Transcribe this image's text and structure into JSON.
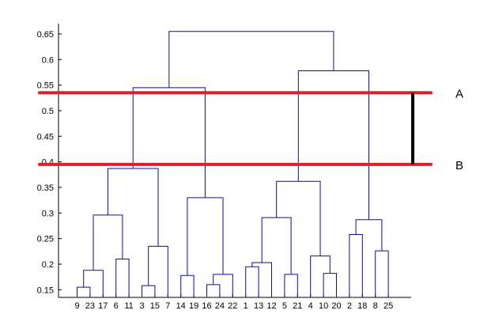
{
  "chart_data": {
    "type": "dendrogram",
    "ylim": [
      0.135,
      0.67
    ],
    "y_ticks": [
      0.15,
      0.2,
      0.25,
      0.3,
      0.35,
      0.4,
      0.45,
      0.5,
      0.55,
      0.6,
      0.65
    ],
    "y_tick_labels": [
      "0.15",
      "0.2",
      "0.25",
      "0.3",
      "0.35",
      "0.4",
      "0.45",
      "0.5",
      "0.55",
      "0.6",
      "0.65"
    ],
    "leaf_order": [
      "9",
      "23",
      "17",
      "6",
      "11",
      "3",
      "15",
      "7",
      "14",
      "19",
      "16",
      "24",
      "22",
      "1",
      "13",
      "12",
      "5",
      "21",
      "4",
      "10",
      "20",
      "2",
      "18",
      "8",
      "25"
    ],
    "merges": [
      {
        "left": "9",
        "right": "23",
        "height": 0.155
      },
      {
        "left": "9-23",
        "right": "17",
        "height": 0.188
      },
      {
        "left": "6",
        "right": "11",
        "height": 0.21
      },
      {
        "left": "9-23-17",
        "right": "6-11",
        "height": 0.296
      },
      {
        "left": "3",
        "right": "15",
        "height": 0.158
      },
      {
        "left": "3-15",
        "right": "7",
        "height": 0.235
      },
      {
        "left": "9-23-17-6-11",
        "right": "3-15-7",
        "height": 0.387
      },
      {
        "left": "16",
        "right": "24",
        "height": 0.16
      },
      {
        "left": "16-24",
        "right": "22",
        "height": 0.18
      },
      {
        "left": "14",
        "right": "19",
        "height": 0.178
      },
      {
        "left": "14-19",
        "right": "16-24-22",
        "height": 0.33
      },
      {
        "left": "group-1",
        "right": "group-2",
        "height": 0.545
      },
      {
        "left": "1",
        "right": "13",
        "height": 0.195
      },
      {
        "left": "1-13",
        "right": "12",
        "height": 0.203
      },
      {
        "left": "5",
        "right": "21",
        "height": 0.18
      },
      {
        "left": "1-13-12",
        "right": "5-21",
        "height": 0.291
      },
      {
        "left": "10",
        "right": "20",
        "height": 0.182
      },
      {
        "left": "4",
        "right": "10-20",
        "height": 0.216
      },
      {
        "left": "1-13-12-5-21",
        "right": "4-10-20",
        "height": 0.362
      },
      {
        "left": "2",
        "right": "18",
        "height": 0.258
      },
      {
        "left": "8",
        "right": "25",
        "height": 0.226
      },
      {
        "left": "2-18",
        "right": "8-25",
        "height": 0.287
      },
      {
        "left": "group-3",
        "right": "group-4",
        "height": 0.578
      },
      {
        "left": "left-cluster",
        "right": "right-cluster",
        "height": 0.655
      }
    ],
    "cut_lines": [
      {
        "label": "A",
        "y": 0.535,
        "color": "#d8222a"
      },
      {
        "label": "B",
        "y": 0.395,
        "color": "#d8222a"
      }
    ],
    "link_color": "#0b0bb0",
    "grid": false
  }
}
